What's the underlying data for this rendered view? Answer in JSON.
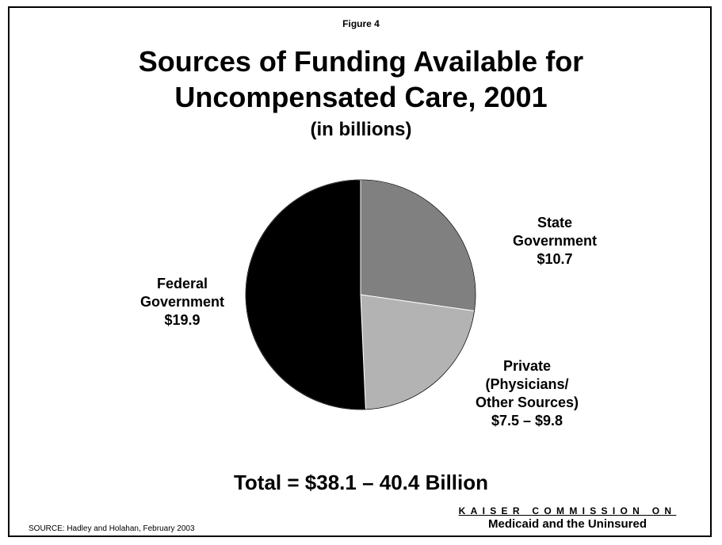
{
  "figure_label": "Figure 4",
  "chart_data": {
    "type": "pie",
    "title_lines": [
      "Sources of Funding Available for",
      "Uncompensated Care, 2001"
    ],
    "subtitle": "(in billions)",
    "slices": [
      {
        "name_lines": [
          "State",
          "Government"
        ],
        "value_label": "$10.7",
        "value": 10.7,
        "color": "#808080"
      },
      {
        "name_lines": [
          "Private",
          "(Physicians/",
          "Other Sources)"
        ],
        "value_label": "$7.5 – $9.8",
        "value": 8.65,
        "color": "#b3b3b3"
      },
      {
        "name_lines": [
          "Federal",
          "Government"
        ],
        "value_label": "$19.9",
        "value": 19.9,
        "color": "#000000"
      }
    ],
    "start_angle_deg": 0,
    "direction": "clockwise",
    "legend": "none",
    "slice_border_color": "#ffffff",
    "total_label": "Total = $38.1 – 40.4 Billion"
  },
  "footer": {
    "commission_line1": "KAISER COMMISSION ON",
    "commission_line2": "Medicaid and the Uninsured",
    "source": "SOURCE: Hadley and Holahan, February 2003"
  }
}
